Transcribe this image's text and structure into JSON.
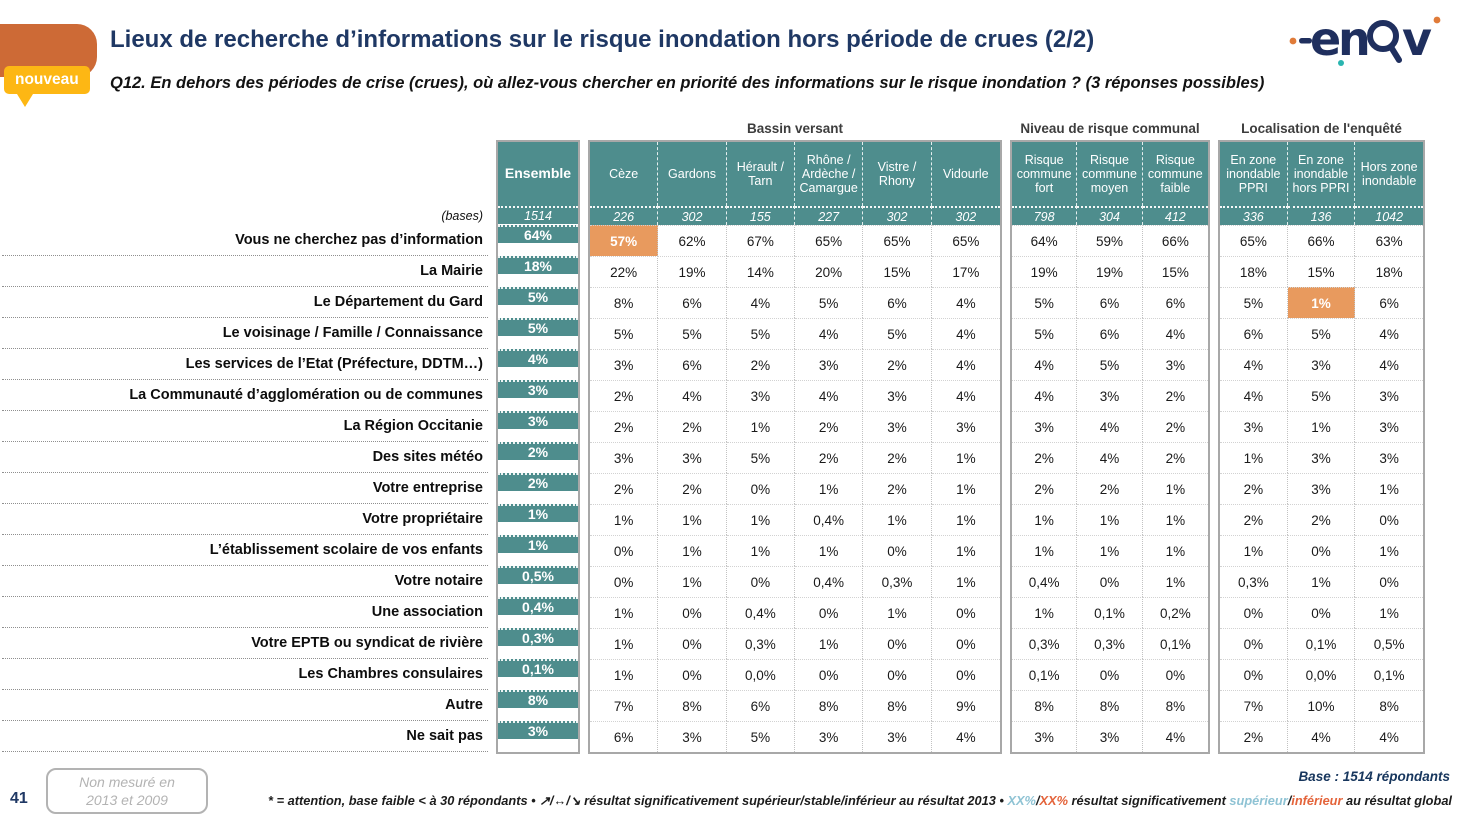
{
  "header": {
    "title": "Lieux de recherche d’informations sur le risque inondation hors période de crues (2/2)",
    "subtitle": "Q12. En dehors des périodes de crise (crues), où allez-vous chercher en priorité des informations sur le risque inondation ? (3 réponses possibles)",
    "badge": "nouveau",
    "logo_text": "enov"
  },
  "colors": {
    "teal_header": "#4e8d8d",
    "highlight_orange": "#e89a5e",
    "accent_orange": "#cd6a36",
    "badge_yellow": "#fdb714",
    "title_navy": "#1f3864",
    "footnote_blue": "#8fc3d4",
    "footnote_orange": "#e4643b"
  },
  "table": {
    "ensemble_label": "Ensemble",
    "ensemble_base": "1514",
    "bases_label": "(bases)",
    "groups": [
      {
        "label": "Bassin versant",
        "columns": [
          "Cèze",
          "Gardons",
          "Hérault / Tarn",
          "Rhône / Ardèche / Camargue",
          "Vistre / Rhony",
          "Vidourle"
        ],
        "bases": [
          "226",
          "302",
          "155",
          "227",
          "302",
          "302"
        ]
      },
      {
        "label": "Niveau de risque communal",
        "columns": [
          "Risque commune fort",
          "Risque commune moyen",
          "Risque commune faible"
        ],
        "bases": [
          "798",
          "304",
          "412"
        ]
      },
      {
        "label": "Localisation de l'enquêté",
        "columns": [
          "En zone inondable PPRI",
          "En zone inondable hors PPRI",
          "Hors zone inondable"
        ],
        "bases": [
          "336",
          "136",
          "1042"
        ]
      }
    ],
    "rows": [
      {
        "label": "Vous ne cherchez pas d’information",
        "ensemble": "64%",
        "values": [
          "57%",
          "62%",
          "67%",
          "65%",
          "65%",
          "65%",
          "64%",
          "59%",
          "66%",
          "65%",
          "66%",
          "63%"
        ],
        "highlights": [
          0
        ]
      },
      {
        "label": "La Mairie",
        "ensemble": "18%",
        "values": [
          "22%",
          "19%",
          "14%",
          "20%",
          "15%",
          "17%",
          "19%",
          "19%",
          "15%",
          "18%",
          "15%",
          "18%"
        ],
        "highlights": []
      },
      {
        "label": "Le Département du Gard",
        "ensemble": "5%",
        "values": [
          "8%",
          "6%",
          "4%",
          "5%",
          "6%",
          "4%",
          "5%",
          "6%",
          "6%",
          "5%",
          "1%",
          "6%"
        ],
        "highlights": [
          10
        ]
      },
      {
        "label": "Le voisinage / Famille / Connaissance",
        "ensemble": "5%",
        "values": [
          "5%",
          "5%",
          "5%",
          "4%",
          "5%",
          "4%",
          "5%",
          "6%",
          "4%",
          "6%",
          "5%",
          "4%"
        ],
        "highlights": []
      },
      {
        "label": "Les services de l’Etat (Préfecture, DDTM…)",
        "ensemble": "4%",
        "values": [
          "3%",
          "6%",
          "2%",
          "3%",
          "2%",
          "4%",
          "4%",
          "5%",
          "3%",
          "4%",
          "3%",
          "4%"
        ],
        "highlights": []
      },
      {
        "label": "La Communauté d’agglomération ou de communes",
        "ensemble": "3%",
        "values": [
          "2%",
          "4%",
          "3%",
          "4%",
          "3%",
          "4%",
          "4%",
          "3%",
          "2%",
          "4%",
          "5%",
          "3%"
        ],
        "highlights": []
      },
      {
        "label": "La Région Occitanie",
        "ensemble": "3%",
        "values": [
          "2%",
          "2%",
          "1%",
          "2%",
          "3%",
          "3%",
          "3%",
          "4%",
          "2%",
          "3%",
          "1%",
          "3%"
        ],
        "highlights": []
      },
      {
        "label": "Des sites météo",
        "ensemble": "2%",
        "values": [
          "3%",
          "3%",
          "5%",
          "2%",
          "2%",
          "1%",
          "2%",
          "4%",
          "2%",
          "1%",
          "3%",
          "3%"
        ],
        "highlights": []
      },
      {
        "label": "Votre entreprise",
        "ensemble": "2%",
        "values": [
          "2%",
          "2%",
          "0%",
          "1%",
          "2%",
          "1%",
          "2%",
          "2%",
          "1%",
          "2%",
          "3%",
          "1%"
        ],
        "highlights": []
      },
      {
        "label": "Votre propriétaire",
        "ensemble": "1%",
        "values": [
          "1%",
          "1%",
          "1%",
          "0,4%",
          "1%",
          "1%",
          "1%",
          "1%",
          "1%",
          "2%",
          "2%",
          "0%"
        ],
        "highlights": []
      },
      {
        "label": "L’établissement scolaire de vos enfants",
        "ensemble": "1%",
        "values": [
          "0%",
          "1%",
          "1%",
          "1%",
          "0%",
          "1%",
          "1%",
          "1%",
          "1%",
          "1%",
          "0%",
          "1%"
        ],
        "highlights": []
      },
      {
        "label": "Votre notaire",
        "ensemble": "0,5%",
        "values": [
          "0%",
          "1%",
          "0%",
          "0,4%",
          "0,3%",
          "1%",
          "0,4%",
          "0%",
          "1%",
          "0,3%",
          "1%",
          "0%"
        ],
        "highlights": []
      },
      {
        "label": "Une association",
        "ensemble": "0,4%",
        "values": [
          "1%",
          "0%",
          "0,4%",
          "0%",
          "1%",
          "0%",
          "1%",
          "0,1%",
          "0,2%",
          "0%",
          "0%",
          "1%"
        ],
        "highlights": []
      },
      {
        "label": "Votre EPTB ou syndicat de rivière",
        "ensemble": "0,3%",
        "values": [
          "1%",
          "0%",
          "0,3%",
          "1%",
          "0%",
          "0%",
          "0,3%",
          "0,3%",
          "0,1%",
          "0%",
          "0,1%",
          "0,5%"
        ],
        "highlights": []
      },
      {
        "label": "Les Chambres consulaires",
        "ensemble": "0,1%",
        "values": [
          "1%",
          "0%",
          "0,0%",
          "0%",
          "0%",
          "0%",
          "0,1%",
          "0%",
          "0%",
          "0%",
          "0,0%",
          "0,1%"
        ],
        "highlights": []
      },
      {
        "label": "Autre",
        "ensemble": "8%",
        "values": [
          "7%",
          "8%",
          "6%",
          "8%",
          "8%",
          "9%",
          "8%",
          "8%",
          "8%",
          "7%",
          "10%",
          "8%"
        ],
        "highlights": []
      },
      {
        "label": "Ne sait pas",
        "ensemble": "3%",
        "values": [
          "6%",
          "3%",
          "5%",
          "3%",
          "3%",
          "4%",
          "3%",
          "3%",
          "4%",
          "2%",
          "4%",
          "4%"
        ],
        "highlights": []
      }
    ]
  },
  "footer": {
    "page_number": "41",
    "note_line1": "Non mesuré en",
    "note_line2": "2013 et 2009",
    "base_note": "Base : 1514 répondants",
    "footnote": {
      "part1": "* = attention, base faible < à 30 répondants • ↗/↔/↘ résultat significativement supérieur/stable/inférieur au résultat 2013 • ",
      "xx_blue": "XX%",
      "slash1": "/",
      "xx_orange": "XX%",
      "part2": " résultat significativement ",
      "sup": "supérieur",
      "slash2": "/",
      "inf": "inférieur",
      "part3": " au résultat global"
    }
  }
}
